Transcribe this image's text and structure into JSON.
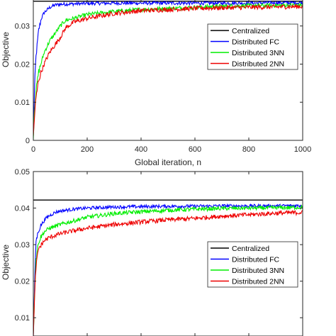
{
  "chart_data": [
    {
      "type": "line",
      "xlabel": "Global iteration, n",
      "ylabel": "Objective",
      "xlim": [
        0,
        1000
      ],
      "ylim": [
        0,
        0.037
      ],
      "xticks": [
        0,
        200,
        400,
        600,
        800,
        1000
      ],
      "xtick_labels": [
        "0",
        "200",
        "400",
        "600",
        "800",
        "1000"
      ],
      "yticks": [
        0,
        0.01,
        0.02,
        0.03
      ],
      "ytick_labels": [
        "0",
        "0.01",
        "0.02",
        "0.03"
      ],
      "grid": false,
      "legend_position": "right",
      "series": [
        {
          "name": "Centralized",
          "color": "#000000",
          "x": [
            0,
            1000
          ],
          "y": [
            0.0365,
            0.0365
          ]
        },
        {
          "name": "Distributed FC",
          "color": "#0000ff",
          "x": [
            0,
            5,
            10,
            20,
            30,
            40,
            60,
            80,
            100,
            150,
            200,
            300,
            400,
            500,
            600,
            700,
            800,
            900,
            1000
          ],
          "y": [
            0.001,
            0.015,
            0.022,
            0.029,
            0.032,
            0.0335,
            0.0348,
            0.0355,
            0.0357,
            0.0358,
            0.0359,
            0.036,
            0.036,
            0.036,
            0.036,
            0.036,
            0.036,
            0.0361,
            0.0361
          ]
        },
        {
          "name": "Distributed 3NN",
          "color": "#00ee00",
          "x": [
            0,
            5,
            10,
            20,
            40,
            60,
            80,
            100,
            120,
            150,
            200,
            300,
            400,
            500,
            600,
            700,
            800,
            900,
            1000
          ],
          "y": [
            0.001,
            0.009,
            0.013,
            0.018,
            0.023,
            0.026,
            0.028,
            0.03,
            0.0315,
            0.032,
            0.033,
            0.0338,
            0.0343,
            0.0346,
            0.0349,
            0.0352,
            0.0353,
            0.0354,
            0.0355
          ]
        },
        {
          "name": "Distributed 2NN",
          "color": "#ee0000",
          "x": [
            0,
            5,
            10,
            20,
            40,
            60,
            80,
            100,
            120,
            150,
            200,
            300,
            400,
            500,
            600,
            700,
            800,
            900,
            1000
          ],
          "y": [
            0.001,
            0.007,
            0.011,
            0.016,
            0.02,
            0.023,
            0.025,
            0.027,
            0.0295,
            0.031,
            0.032,
            0.0333,
            0.034,
            0.0343,
            0.0346,
            0.0348,
            0.0349,
            0.035,
            0.0351
          ]
        }
      ]
    },
    {
      "type": "line",
      "xlabel": "",
      "ylabel": "Objective",
      "xlim": [
        0,
        1000
      ],
      "ylim": [
        0.005,
        0.05
      ],
      "yticks": [
        0.01,
        0.02,
        0.03,
        0.04,
        0.05
      ],
      "ytick_labels": [
        "0.01",
        "0.02",
        "0.03",
        "0.04",
        "0.05"
      ],
      "grid": false,
      "legend_position": "right",
      "series": [
        {
          "name": "Centralized",
          "color": "#000000",
          "x": [
            0,
            1000
          ],
          "y": [
            0.0422,
            0.0422
          ]
        },
        {
          "name": "Distributed FC",
          "color": "#0000ff",
          "x": [
            0,
            5,
            10,
            20,
            30,
            50,
            80,
            100,
            150,
            200,
            300,
            400,
            500,
            600,
            700,
            800,
            900,
            1000
          ],
          "y": [
            0.005,
            0.02,
            0.031,
            0.034,
            0.0355,
            0.0375,
            0.0388,
            0.0392,
            0.0397,
            0.04,
            0.0403,
            0.0404,
            0.0405,
            0.0405,
            0.0406,
            0.0406,
            0.0406,
            0.0407
          ]
        },
        {
          "name": "Distributed 3NN",
          "color": "#00ee00",
          "x": [
            0,
            5,
            10,
            20,
            40,
            60,
            80,
            100,
            150,
            200,
            300,
            400,
            500,
            600,
            700,
            800,
            900,
            1000
          ],
          "y": [
            0.005,
            0.018,
            0.026,
            0.031,
            0.0335,
            0.0345,
            0.035,
            0.0355,
            0.0365,
            0.0375,
            0.0385,
            0.039,
            0.0394,
            0.0397,
            0.0399,
            0.04,
            0.0401,
            0.0402
          ]
        },
        {
          "name": "Distributed 2NN",
          "color": "#ee0000",
          "x": [
            0,
            5,
            10,
            20,
            40,
            60,
            80,
            100,
            150,
            200,
            300,
            400,
            500,
            600,
            700,
            800,
            900,
            1000
          ],
          "y": [
            0.005,
            0.016,
            0.024,
            0.029,
            0.031,
            0.032,
            0.0325,
            0.033,
            0.0338,
            0.0345,
            0.0355,
            0.0362,
            0.0368,
            0.0372,
            0.0378,
            0.0382,
            0.0386,
            0.0388
          ]
        }
      ]
    }
  ]
}
